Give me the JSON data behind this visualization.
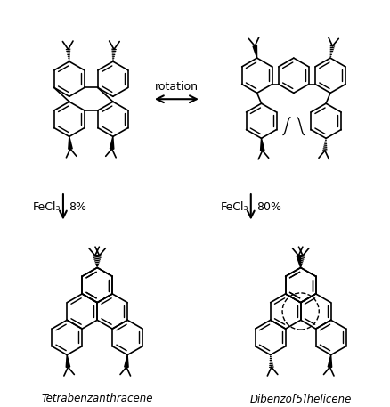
{
  "bg_color": "#ffffff",
  "rotation_label": "rotation",
  "fecl3_label": "FeCl₃",
  "yield_left": "8%",
  "yield_right": "80%",
  "label_left": "Tetrabenzanthracene",
  "label_right": "Dibenzo[5]helicene",
  "fig_width": 4.39,
  "fig_height": 4.57,
  "dpi": 100,
  "lw": 1.2,
  "lw_bold": 2.2,
  "R": 20
}
